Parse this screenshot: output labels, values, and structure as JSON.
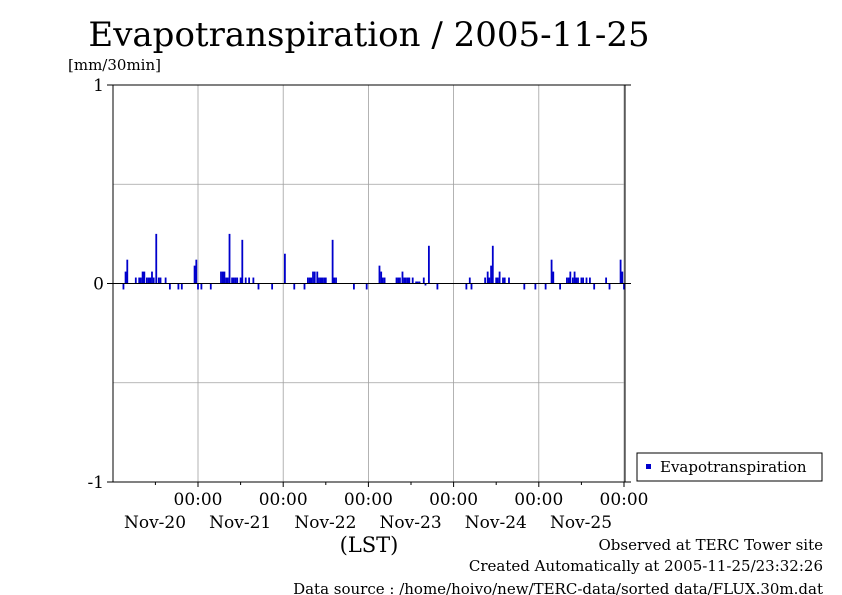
{
  "chart_data": {
    "type": "bar",
    "title": "Evapotranspiration / 2005-11-25",
    "ylabel": "[mm/30min]",
    "xlabel": "(LST)",
    "ylim": [
      -1,
      1
    ],
    "y_ticks": [
      "1",
      "0",
      "-1"
    ],
    "x_ticks": [
      {
        "time": "00:00",
        "day": "Nov-20"
      },
      {
        "time": "00:00",
        "day": "Nov-21"
      },
      {
        "time": "00:00",
        "day": "Nov-22"
      },
      {
        "time": "00:00",
        "day": "Nov-23"
      },
      {
        "time": "00:00",
        "day": "Nov-24"
      },
      {
        "time": "00:00",
        "day": "Nov-25"
      }
    ],
    "grid": true,
    "legend_position": "bottom-right",
    "series": [
      {
        "name": "Evapotranspiration",
        "color": "#0000cc",
        "points": [
          {
            "d": -0.875,
            "v": -0.03
          },
          {
            "d": -0.85,
            "v": 0.06
          },
          {
            "d": -0.83,
            "v": 0.12
          },
          {
            "d": -0.73,
            "v": 0.03
          },
          {
            "d": -0.69,
            "v": 0.03
          },
          {
            "d": -0.67,
            "v": 0.03
          },
          {
            "d": -0.65,
            "v": 0.06
          },
          {
            "d": -0.63,
            "v": 0.06
          },
          {
            "d": -0.6,
            "v": 0.03
          },
          {
            "d": -0.58,
            "v": 0.03
          },
          {
            "d": -0.56,
            "v": 0.03
          },
          {
            "d": -0.54,
            "v": 0.06
          },
          {
            "d": -0.52,
            "v": 0.03
          },
          {
            "d": -0.49,
            "v": 0.25
          },
          {
            "d": -0.46,
            "v": 0.03
          },
          {
            "d": -0.44,
            "v": 0.03
          },
          {
            "d": -0.38,
            "v": 0.03
          },
          {
            "d": -0.33,
            "v": -0.03
          },
          {
            "d": -0.23,
            "v": -0.03
          },
          {
            "d": -0.19,
            "v": -0.03
          },
          {
            "d": -0.04,
            "v": 0.09
          },
          {
            "d": -0.02,
            "v": 0.12
          },
          {
            "d": 0.0,
            "v": -0.03
          },
          {
            "d": 0.04,
            "v": -0.03
          },
          {
            "d": 0.15,
            "v": -0.03
          },
          {
            "d": 0.27,
            "v": 0.06
          },
          {
            "d": 0.29,
            "v": 0.06
          },
          {
            "d": 0.31,
            "v": 0.06
          },
          {
            "d": 0.33,
            "v": 0.03
          },
          {
            "d": 0.35,
            "v": 0.03
          },
          {
            "d": 0.37,
            "v": 0.25
          },
          {
            "d": 0.4,
            "v": 0.03
          },
          {
            "d": 0.42,
            "v": 0.03
          },
          {
            "d": 0.44,
            "v": 0.03
          },
          {
            "d": 0.46,
            "v": 0.03
          },
          {
            "d": 0.5,
            "v": 0.03
          },
          {
            "d": 0.52,
            "v": 0.22
          },
          {
            "d": 0.56,
            "v": 0.03
          },
          {
            "d": 0.6,
            "v": 0.03
          },
          {
            "d": 0.65,
            "v": 0.03
          },
          {
            "d": 0.71,
            "v": -0.03
          },
          {
            "d": 0.87,
            "v": -0.03
          },
          {
            "d": 1.02,
            "v": 0.15
          },
          {
            "d": 1.13,
            "v": -0.03
          },
          {
            "d": 1.25,
            "v": -0.03
          },
          {
            "d": 1.29,
            "v": 0.03
          },
          {
            "d": 1.31,
            "v": 0.03
          },
          {
            "d": 1.33,
            "v": 0.03
          },
          {
            "d": 1.35,
            "v": 0.06
          },
          {
            "d": 1.37,
            "v": 0.06
          },
          {
            "d": 1.4,
            "v": 0.06
          },
          {
            "d": 1.42,
            "v": 0.03
          },
          {
            "d": 1.44,
            "v": 0.03
          },
          {
            "d": 1.46,
            "v": 0.03
          },
          {
            "d": 1.48,
            "v": 0.03
          },
          {
            "d": 1.5,
            "v": 0.03
          },
          {
            "d": 1.58,
            "v": 0.22
          },
          {
            "d": 1.6,
            "v": 0.03
          },
          {
            "d": 1.62,
            "v": 0.03
          },
          {
            "d": 1.83,
            "v": -0.03
          },
          {
            "d": 1.98,
            "v": -0.03
          },
          {
            "d": 2.13,
            "v": 0.09
          },
          {
            "d": 2.15,
            "v": 0.06
          },
          {
            "d": 2.17,
            "v": 0.03
          },
          {
            "d": 2.19,
            "v": 0.03
          },
          {
            "d": 2.33,
            "v": 0.03
          },
          {
            "d": 2.35,
            "v": 0.03
          },
          {
            "d": 2.37,
            "v": 0.03
          },
          {
            "d": 2.4,
            "v": 0.06
          },
          {
            "d": 2.42,
            "v": 0.03
          },
          {
            "d": 2.44,
            "v": 0.03
          },
          {
            "d": 2.46,
            "v": 0.03
          },
          {
            "d": 2.48,
            "v": 0.03
          },
          {
            "d": 2.52,
            "v": 0.03
          },
          {
            "d": 2.56,
            "v": 0.01
          },
          {
            "d": 2.58,
            "v": 0.01
          },
          {
            "d": 2.6,
            "v": 0.01
          },
          {
            "d": 2.65,
            "v": 0.03
          },
          {
            "d": 2.67,
            "v": -0.01
          },
          {
            "d": 2.71,
            "v": 0.19
          },
          {
            "d": 2.81,
            "v": -0.03
          },
          {
            "d": 3.15,
            "v": -0.03
          },
          {
            "d": 3.19,
            "v": 0.03
          },
          {
            "d": 3.21,
            "v": -0.03
          },
          {
            "d": 3.37,
            "v": 0.03
          },
          {
            "d": 3.4,
            "v": 0.06
          },
          {
            "d": 3.42,
            "v": 0.03
          },
          {
            "d": 3.44,
            "v": 0.09
          },
          {
            "d": 3.46,
            "v": 0.19
          },
          {
            "d": 3.5,
            "v": 0.03
          },
          {
            "d": 3.52,
            "v": 0.03
          },
          {
            "d": 3.54,
            "v": 0.06
          },
          {
            "d": 3.58,
            "v": 0.03
          },
          {
            "d": 3.6,
            "v": 0.03
          },
          {
            "d": 3.65,
            "v": 0.03
          },
          {
            "d": 3.83,
            "v": -0.03
          },
          {
            "d": 3.96,
            "v": -0.03
          },
          {
            "d": 4.08,
            "v": -0.03
          },
          {
            "d": 4.15,
            "v": 0.12
          },
          {
            "d": 4.17,
            "v": 0.06
          },
          {
            "d": 4.25,
            "v": -0.03
          },
          {
            "d": 4.33,
            "v": 0.03
          },
          {
            "d": 4.35,
            "v": 0.03
          },
          {
            "d": 4.37,
            "v": 0.06
          },
          {
            "d": 4.4,
            "v": 0.03
          },
          {
            "d": 4.42,
            "v": 0.06
          },
          {
            "d": 4.44,
            "v": 0.03
          },
          {
            "d": 4.46,
            "v": 0.03
          },
          {
            "d": 4.5,
            "v": 0.03
          },
          {
            "d": 4.52,
            "v": 0.03
          },
          {
            "d": 4.56,
            "v": 0.03
          },
          {
            "d": 4.6,
            "v": 0.03
          },
          {
            "d": 4.65,
            "v": -0.03
          },
          {
            "d": 4.79,
            "v": 0.03
          },
          {
            "d": 4.83,
            "v": -0.03
          },
          {
            "d": 4.96,
            "v": 0.12
          },
          {
            "d": 4.98,
            "v": 0.06
          },
          {
            "d": 5.0,
            "v": -0.03
          }
        ]
      }
    ]
  },
  "footer": {
    "line1": "Observed at TERC Tower site",
    "line2": "Created Automatically at 2005-11-25/23:32:26",
    "line3": "Data source : /home/hoivo/new/TERC-data/sorted  data/FLUX.30m.dat"
  }
}
